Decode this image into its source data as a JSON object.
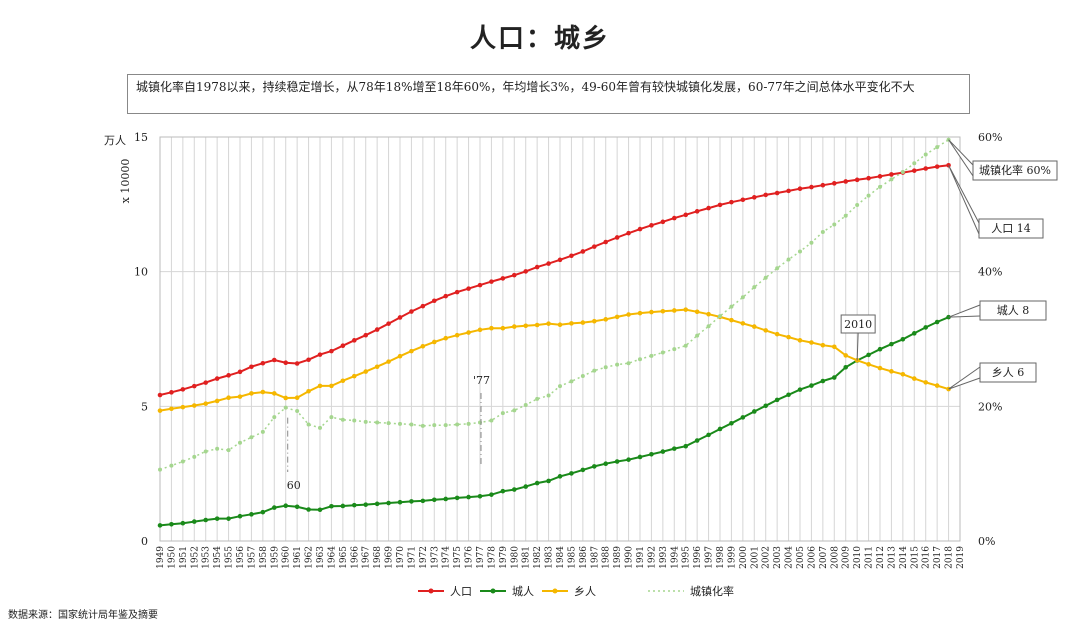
{
  "chart_data": {
    "type": "line",
    "title": "人口：城乡",
    "note": "城镇化率自1978以来，持续稳定增长，从78年18%增至18年60%，年均增长3%，49-60年曾有较快城镇化发展，60-77年之间总体水平变化不大",
    "y_left_unit": "万人",
    "y_left_label": "x 10000",
    "y_left_range": [
      0,
      15
    ],
    "y_left_ticks": [
      "0",
      "5",
      "10",
      "15"
    ],
    "y_right_range": [
      0,
      60
    ],
    "y_right_ticks": [
      "0%",
      "20%",
      "40%",
      "60%"
    ],
    "x_range": [
      1949,
      2019
    ],
    "x": [
      1949,
      1950,
      1951,
      1952,
      1953,
      1954,
      1955,
      1956,
      1957,
      1958,
      1959,
      1960,
      1961,
      1962,
      1963,
      1964,
      1965,
      1966,
      1967,
      1968,
      1969,
      1970,
      1971,
      1972,
      1973,
      1974,
      1975,
      1976,
      1977,
      1978,
      1979,
      1980,
      1981,
      1982,
      1983,
      1984,
      1985,
      1986,
      1987,
      1988,
      1989,
      1990,
      1991,
      1992,
      1993,
      1994,
      1995,
      1996,
      1997,
      1998,
      1999,
      2000,
      2001,
      2002,
      2003,
      2004,
      2005,
      2006,
      2007,
      2008,
      2009,
      2010,
      2011,
      2012,
      2013,
      2014,
      2015,
      2016,
      2017,
      2018
    ],
    "series": [
      {
        "name": "人口",
        "axis": "left",
        "color": "#e02020",
        "style": "solid",
        "values": [
          5.42,
          5.52,
          5.63,
          5.75,
          5.88,
          6.03,
          6.15,
          6.28,
          6.47,
          6.6,
          6.72,
          6.62,
          6.59,
          6.73,
          6.92,
          7.05,
          7.25,
          7.45,
          7.64,
          7.85,
          8.07,
          8.3,
          8.52,
          8.72,
          8.92,
          9.09,
          9.24,
          9.37,
          9.5,
          9.63,
          9.75,
          9.87,
          10.01,
          10.17,
          10.3,
          10.44,
          10.59,
          10.75,
          10.93,
          11.1,
          11.27,
          11.43,
          11.58,
          11.72,
          11.85,
          11.99,
          12.11,
          12.24,
          12.36,
          12.48,
          12.58,
          12.67,
          12.76,
          12.85,
          12.92,
          13.0,
          13.08,
          13.14,
          13.21,
          13.28,
          13.35,
          13.41,
          13.47,
          13.54,
          13.61,
          13.68,
          13.75,
          13.83,
          13.9,
          13.95
        ]
      },
      {
        "name": "城人",
        "axis": "left",
        "color": "#1a8a1a",
        "style": "solid",
        "values": [
          0.58,
          0.62,
          0.66,
          0.72,
          0.78,
          0.83,
          0.83,
          0.92,
          0.99,
          1.07,
          1.24,
          1.31,
          1.27,
          1.17,
          1.16,
          1.29,
          1.3,
          1.33,
          1.35,
          1.38,
          1.41,
          1.44,
          1.47,
          1.49,
          1.53,
          1.56,
          1.6,
          1.63,
          1.66,
          1.72,
          1.85,
          1.91,
          2.02,
          2.15,
          2.23,
          2.4,
          2.51,
          2.64,
          2.77,
          2.87,
          2.95,
          3.02,
          3.12,
          3.22,
          3.32,
          3.43,
          3.52,
          3.73,
          3.94,
          4.16,
          4.37,
          4.59,
          4.81,
          5.02,
          5.24,
          5.43,
          5.62,
          5.77,
          5.94,
          6.07,
          6.45,
          6.7,
          6.91,
          7.12,
          7.31,
          7.49,
          7.71,
          7.93,
          8.13,
          8.31
        ]
      },
      {
        "name": "乡人",
        "axis": "left",
        "color": "#f5b700",
        "style": "solid",
        "values": [
          4.84,
          4.91,
          4.97,
          5.03,
          5.1,
          5.2,
          5.32,
          5.36,
          5.48,
          5.53,
          5.48,
          5.31,
          5.32,
          5.56,
          5.76,
          5.76,
          5.95,
          6.12,
          6.29,
          6.47,
          6.66,
          6.86,
          7.05,
          7.23,
          7.39,
          7.53,
          7.64,
          7.74,
          7.84,
          7.9,
          7.9,
          7.96,
          7.99,
          8.02,
          8.07,
          8.03,
          8.08,
          8.11,
          8.16,
          8.23,
          8.32,
          8.41,
          8.46,
          8.5,
          8.53,
          8.56,
          8.59,
          8.51,
          8.42,
          8.32,
          8.2,
          8.08,
          7.96,
          7.82,
          7.68,
          7.57,
          7.45,
          7.37,
          7.27,
          7.21,
          6.89,
          6.71,
          6.56,
          6.42,
          6.3,
          6.19,
          6.03,
          5.89,
          5.77,
          5.64
        ]
      },
      {
        "name": "城镇化率",
        "axis": "right",
        "color": "#a5d68f",
        "style": "dotted",
        "values": [
          10.6,
          11.2,
          11.8,
          12.5,
          13.3,
          13.7,
          13.5,
          14.6,
          15.4,
          16.2,
          18.4,
          19.8,
          19.3,
          17.3,
          16.8,
          18.4,
          18.0,
          17.9,
          17.7,
          17.6,
          17.5,
          17.4,
          17.3,
          17.1,
          17.2,
          17.2,
          17.3,
          17.4,
          17.6,
          17.9,
          19.0,
          19.4,
          20.2,
          21.1,
          21.6,
          23.0,
          23.7,
          24.5,
          25.3,
          25.8,
          26.2,
          26.4,
          27.0,
          27.5,
          28.0,
          28.5,
          29.0,
          30.5,
          31.9,
          33.4,
          34.8,
          36.2,
          37.7,
          39.1,
          40.5,
          41.8,
          43.0,
          44.3,
          45.9,
          47.0,
          48.3,
          49.9,
          51.3,
          52.6,
          53.7,
          54.8,
          56.1,
          57.4,
          58.5,
          59.6
        ]
      }
    ],
    "annotations": [
      "60",
      "'77",
      "2010"
    ],
    "callouts": [
      "城镇化率 60%",
      "人口 14",
      "城人 8",
      "乡人 6"
    ],
    "legend": [
      "人口",
      "城人",
      "乡人",
      "城镇化率"
    ],
    "legend_position": "bottom",
    "grid": true,
    "source": "数据来源：国家统计局年鉴及摘要"
  }
}
